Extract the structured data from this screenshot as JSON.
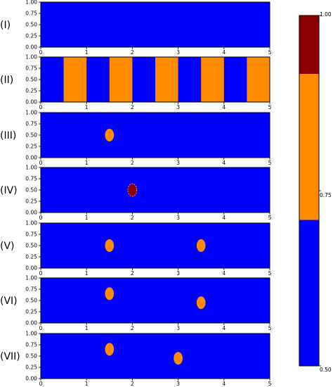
{
  "chart_data": [
    {
      "type": "heatmap",
      "panel_label": "(I)",
      "xlim": [
        0,
        5
      ],
      "ylim": [
        0,
        1
      ],
      "xticks": [
        "0",
        "1",
        "2",
        "3",
        "4",
        "5"
      ],
      "yticks": [
        "0.00",
        "0.25",
        "0.50",
        "0.75",
        "1.00"
      ],
      "background_value": 0.5,
      "stripes": [],
      "circles": []
    },
    {
      "type": "heatmap",
      "panel_label": "(II)",
      "xlim": [
        0,
        5
      ],
      "ylim": [
        0,
        1
      ],
      "xticks": [
        "0",
        "1",
        "2",
        "3",
        "4",
        "5"
      ],
      "yticks": [
        "0.00",
        "0.25",
        "0.50",
        "0.75",
        "1.00"
      ],
      "background_value": 0.5,
      "stripes": [
        {
          "x0": 0.5,
          "x1": 1.0,
          "value": 0.75
        },
        {
          "x0": 1.5,
          "x1": 2.0,
          "value": 0.75
        },
        {
          "x0": 2.5,
          "x1": 3.0,
          "value": 0.75
        },
        {
          "x0": 3.5,
          "x1": 4.0,
          "value": 0.75
        },
        {
          "x0": 4.5,
          "x1": 5.0,
          "value": 0.75
        }
      ],
      "circles": []
    },
    {
      "type": "heatmap",
      "panel_label": "(III)",
      "xlim": [
        0,
        5
      ],
      "ylim": [
        0,
        1
      ],
      "xticks": [
        "0",
        "1",
        "2",
        "3",
        "4",
        "5"
      ],
      "yticks": [
        "0.00",
        "0.25",
        "0.50",
        "0.75",
        "1.00"
      ],
      "background_value": 0.5,
      "stripes": [],
      "circles": [
        {
          "x": 1.5,
          "y": 0.5,
          "r": 0.18,
          "value": 0.75
        }
      ]
    },
    {
      "type": "heatmap",
      "panel_label": "(IV)",
      "xlim": [
        0,
        5
      ],
      "ylim": [
        0,
        1
      ],
      "xticks": [
        "0",
        "1",
        "2",
        "3",
        "4",
        "5"
      ],
      "yticks": [
        "0.00",
        "0.25",
        "0.50",
        "0.75",
        "1.00"
      ],
      "background_value": 0.5,
      "stripes": [],
      "circles": [
        {
          "x": 2.0,
          "y": 0.5,
          "r": 0.18,
          "value": 1.0
        }
      ]
    },
    {
      "type": "heatmap",
      "panel_label": "(V)",
      "xlim": [
        0,
        5
      ],
      "ylim": [
        0,
        1
      ],
      "xticks": [
        "0",
        "1",
        "2",
        "3",
        "4",
        "5"
      ],
      "yticks": [
        "0.00",
        "0.25",
        "0.50",
        "0.75",
        "1.00"
      ],
      "background_value": 0.5,
      "stripes": [],
      "circles": [
        {
          "x": 1.5,
          "y": 0.5,
          "r": 0.18,
          "value": 0.75
        },
        {
          "x": 3.5,
          "y": 0.5,
          "r": 0.18,
          "value": 0.75
        }
      ]
    },
    {
      "type": "heatmap",
      "panel_label": "(VI)",
      "xlim": [
        0,
        5
      ],
      "ylim": [
        0,
        1
      ],
      "xticks": [
        "0",
        "1",
        "2",
        "3",
        "4",
        "5"
      ],
      "yticks": [
        "0.00",
        "0.25",
        "0.50",
        "0.75",
        "1.00"
      ],
      "background_value": 0.5,
      "stripes": [],
      "circles": [
        {
          "x": 1.5,
          "y": 0.65,
          "r": 0.18,
          "value": 0.75
        },
        {
          "x": 3.5,
          "y": 0.45,
          "r": 0.18,
          "value": 0.75
        }
      ]
    },
    {
      "type": "heatmap",
      "panel_label": "(VII)",
      "xlim": [
        0,
        5
      ],
      "ylim": [
        0,
        1
      ],
      "xticks": [
        "0",
        "1",
        "2",
        "3",
        "4",
        "5"
      ],
      "yticks": [
        "0.00",
        "0.25",
        "0.50",
        "0.75",
        "1.00"
      ],
      "background_value": 0.5,
      "stripes": [],
      "circles": [
        {
          "x": 1.5,
          "y": 0.65,
          "r": 0.18,
          "value": 0.75
        },
        {
          "x": 3.0,
          "y": 0.45,
          "r": 0.18,
          "value": 0.75
        }
      ]
    }
  ],
  "colorbar": {
    "range": [
      0.5,
      1.0
    ],
    "tick_labels": [
      "0.50",
      "0.75",
      "1.00"
    ],
    "bands": [
      {
        "from": 0.5,
        "to": 0.7083,
        "color": "#0000ff"
      },
      {
        "from": 0.7083,
        "to": 0.9167,
        "color": "#ff8c00"
      },
      {
        "from": 0.9167,
        "to": 1.0,
        "color": "#8b0000"
      }
    ]
  },
  "colors": {
    "low": "#0000ff",
    "mid": "#ff8c00",
    "high": "#8b0000"
  }
}
